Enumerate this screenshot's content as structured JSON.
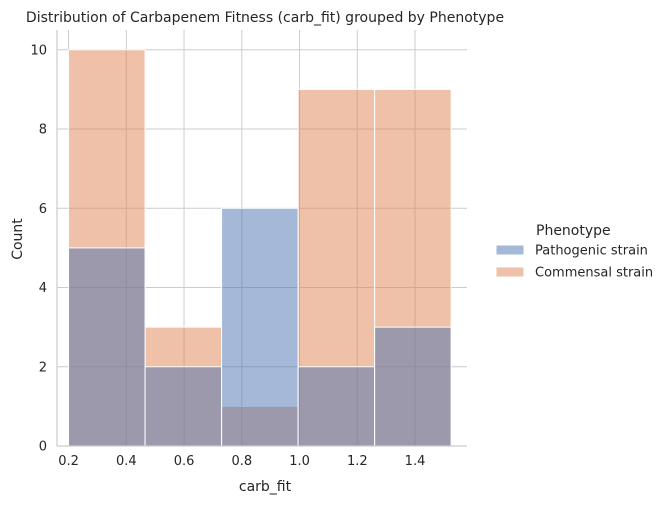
{
  "chart_data": {
    "type": "bar",
    "subtype": "stacked-histogram",
    "title": "Distribution of Carbapenem Fitness (carb_fit) grouped by Phenotype",
    "xlabel": "carb_fit",
    "ylabel": "Count",
    "xlim": [
      0.16,
      1.58
    ],
    "ylim": [
      0,
      10.5
    ],
    "xticks": [
      "0.2",
      "0.4",
      "0.6",
      "0.8",
      "1.0",
      "1.2",
      "1.4"
    ],
    "yticks": [
      "0",
      "2",
      "4",
      "6",
      "8",
      "10"
    ],
    "grid": true,
    "legend": {
      "title": "Phenotype",
      "placement": "right"
    },
    "bins": [
      [
        0.2,
        0.465
      ],
      [
        0.465,
        0.73
      ],
      [
        0.73,
        0.995
      ],
      [
        0.995,
        1.26
      ],
      [
        1.26,
        1.525
      ]
    ],
    "series": [
      {
        "name": "Pathogenic strain",
        "color": "#4c72b0",
        "values": [
          5,
          2,
          6,
          2,
          3
        ]
      },
      {
        "name": "Commensal strain",
        "color": "#dd8452",
        "values": [
          10,
          3,
          1,
          9,
          9
        ]
      }
    ]
  }
}
